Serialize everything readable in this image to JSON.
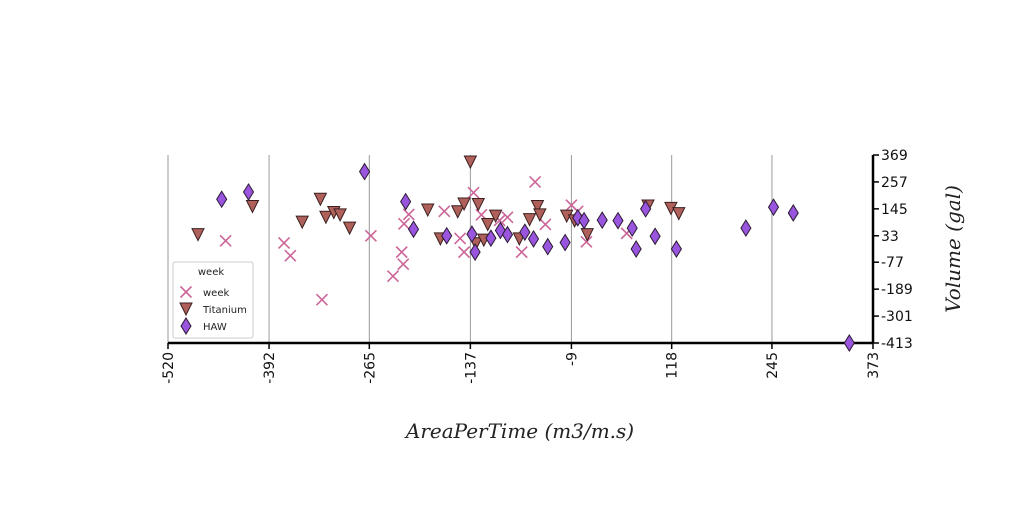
{
  "chart_data": {
    "type": "scatter",
    "title": "",
    "xlabel": "AreaPerTime (m3/m.s)",
    "ylabel": "Volume (gal)",
    "x_ticks": [
      -520,
      -392,
      -265,
      -137,
      -9,
      118,
      245,
      373
    ],
    "y_ticks": [
      369,
      257,
      145,
      33,
      -77,
      -189,
      -301,
      -413
    ],
    "xlim": [
      -520,
      373
    ],
    "ylim": [
      -413,
      369
    ],
    "grid": "vertical",
    "legend": {
      "title": "week",
      "placement": "lower-left"
    },
    "series": [
      {
        "name": "week",
        "marker": "x",
        "color": "#cc6699",
        "points": [
          [
            -447,
            12
          ],
          [
            -373,
            3
          ],
          [
            -365,
            -50
          ],
          [
            -325,
            -233
          ],
          [
            -263,
            33
          ],
          [
            -235,
            -135
          ],
          [
            -224,
            -35
          ],
          [
            -222,
            -85
          ],
          [
            -221,
            83
          ],
          [
            -215,
            122
          ],
          [
            -170,
            135
          ],
          [
            -150,
            22
          ],
          [
            -145,
            -35
          ],
          [
            -133,
            212
          ],
          [
            -123,
            120
          ],
          [
            -100,
            97
          ],
          [
            -90,
            110
          ],
          [
            -72,
            -35
          ],
          [
            -55,
            257
          ],
          [
            -42,
            80
          ],
          [
            -9,
            160
          ],
          [
            -1,
            135
          ],
          [
            10,
            8
          ],
          [
            61,
            43
          ]
        ]
      },
      {
        "name": "Titanium",
        "marker": "triangle-down",
        "color": "#b0605a",
        "points": [
          [
            -482,
            38
          ],
          [
            -413,
            155
          ],
          [
            -350,
            90
          ],
          [
            -327,
            185
          ],
          [
            -320,
            110
          ],
          [
            -310,
            130
          ],
          [
            -302,
            120
          ],
          [
            -290,
            65
          ],
          [
            -191,
            140
          ],
          [
            -175,
            20
          ],
          [
            -153,
            133
          ],
          [
            -145,
            165
          ],
          [
            -137,
            340
          ],
          [
            -130,
            0
          ],
          [
            -127,
            163
          ],
          [
            -120,
            15
          ],
          [
            -115,
            80
          ],
          [
            -105,
            115
          ],
          [
            -75,
            20
          ],
          [
            -62,
            100
          ],
          [
            -52,
            155
          ],
          [
            -49,
            120
          ],
          [
            -15,
            115
          ],
          [
            -5,
            95
          ],
          [
            11,
            38
          ],
          [
            88,
            157
          ],
          [
            117,
            147
          ],
          [
            127,
            125
          ]
        ]
      },
      {
        "name": "HAW",
        "marker": "diamond",
        "color": "#9955dd",
        "points": [
          [
            -452,
            185
          ],
          [
            -418,
            215
          ],
          [
            -271,
            300
          ],
          [
            -219,
            175
          ],
          [
            -209,
            60
          ],
          [
            -167,
            33
          ],
          [
            -135,
            40
          ],
          [
            -131,
            -35
          ],
          [
            -111,
            23
          ],
          [
            -99,
            55
          ],
          [
            -90,
            38
          ],
          [
            -68,
            48
          ],
          [
            -57,
            20
          ],
          [
            -39,
            -12
          ],
          [
            -17,
            5
          ],
          [
            -1,
            108
          ],
          [
            7,
            96
          ],
          [
            30,
            98
          ],
          [
            50,
            96
          ],
          [
            68,
            65
          ],
          [
            73,
            -22
          ],
          [
            85,
            145
          ],
          [
            97,
            31
          ],
          [
            124,
            -22
          ],
          [
            212,
            65
          ],
          [
            247,
            152
          ],
          [
            272,
            128
          ],
          [
            343,
            -413
          ]
        ]
      }
    ]
  }
}
